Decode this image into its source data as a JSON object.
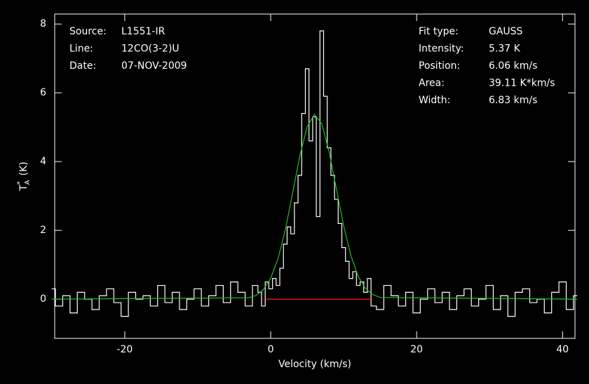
{
  "chart_data": {
    "type": "line",
    "xlabel": "Velocity (km/s)",
    "ylabel": {
      "base": "T",
      "sup": "*",
      "sub": "A",
      "unit": "(K)"
    },
    "info_left": [
      [
        "Source:",
        "L1551-IR"
      ],
      [
        "Line:",
        "12CO(3-2)U"
      ],
      [
        "Date:",
        "07-NOV-2009"
      ]
    ],
    "info_right": [
      [
        "Fit type:",
        "GAUSS"
      ],
      [
        "Intensity:",
        "5.37 K"
      ],
      [
        "Position:",
        "6.06 km/s"
      ],
      [
        "Area:",
        "39.11 K*km/s"
      ],
      [
        "Width:",
        "6.83 km/s"
      ]
    ],
    "xlim": [
      -29.6,
      41.7
    ],
    "ylim": [
      -1.14,
      8.29
    ],
    "xticks": [
      -20,
      0,
      20,
      40
    ],
    "yticks": [
      0,
      2,
      4,
      6,
      8
    ],
    "series": [
      {
        "color": "#ffffff",
        "step": true,
        "x": [
          -30,
          -29,
          -28,
          -27,
          -26,
          -25,
          -24,
          -23,
          -22,
          -21,
          -20,
          -19,
          -18,
          -17,
          -16,
          -15,
          -14,
          -13,
          -12,
          -11,
          -10,
          -9,
          -8,
          -7,
          -6,
          -5,
          -4,
          -3,
          -2,
          -1.5,
          -1,
          -0.5,
          0,
          0.5,
          1,
          1.5,
          2,
          2.5,
          3,
          3.5,
          4,
          4.5,
          5,
          5.5,
          6,
          6.5,
          7,
          7.5,
          8,
          8.5,
          9,
          9.5,
          10,
          10.5,
          11,
          11.5,
          12,
          12.5,
          13,
          13.5,
          14,
          15,
          16,
          17,
          18,
          19,
          20,
          21,
          22,
          23,
          24,
          25,
          26,
          27,
          28,
          29,
          30,
          31,
          32,
          33,
          34,
          35,
          36,
          37,
          38,
          39,
          40,
          41,
          42
        ],
        "values": [
          0.3,
          -0.2,
          0.1,
          -0.4,
          0.2,
          0.0,
          -0.3,
          0.1,
          0.3,
          -0.1,
          -0.5,
          0.2,
          0.0,
          0.1,
          -0.2,
          0.4,
          -0.1,
          0.2,
          -0.3,
          0.0,
          0.3,
          -0.2,
          0.1,
          0.4,
          -0.1,
          0.5,
          0.2,
          -0.2,
          0.4,
          0.2,
          -0.2,
          0.5,
          0.3,
          0.6,
          0.4,
          0.9,
          1.6,
          2.1,
          1.9,
          2.8,
          3.6,
          5.4,
          6.7,
          4.6,
          5.3,
          2.4,
          7.8,
          5.9,
          4.4,
          3.6,
          2.9,
          2.2,
          1.5,
          1.1,
          0.6,
          0.8,
          0.4,
          0.5,
          0.2,
          0.6,
          -0.2,
          -0.3,
          0.4,
          0.1,
          -0.2,
          0.2,
          -0.4,
          0.0,
          0.3,
          -0.1,
          0.2,
          -0.3,
          0.1,
          0.3,
          -0.2,
          0.0,
          0.4,
          -0.3,
          0.1,
          -0.5,
          0.2,
          0.3,
          -0.1,
          0.0,
          -0.4,
          0.2,
          0.5,
          -0.3,
          0.1
        ]
      },
      {
        "color": "#ff2020",
        "x": [
          -1,
          14
        ],
        "values": [
          0,
          0
        ]
      },
      {
        "color": "#20c020",
        "x": [
          -30,
          -3,
          -2,
          -1,
          0,
          1,
          2,
          3,
          4,
          5,
          6,
          7,
          8,
          9,
          10,
          11,
          12,
          13,
          14,
          15,
          42
        ],
        "values": [
          0,
          0.04,
          0.11,
          0.28,
          0.61,
          1.17,
          2.01,
          3.08,
          4.17,
          5.02,
          5.37,
          5.1,
          4.29,
          3.21,
          2.13,
          1.26,
          0.66,
          0.31,
          0.13,
          0.05,
          0
        ]
      }
    ]
  }
}
